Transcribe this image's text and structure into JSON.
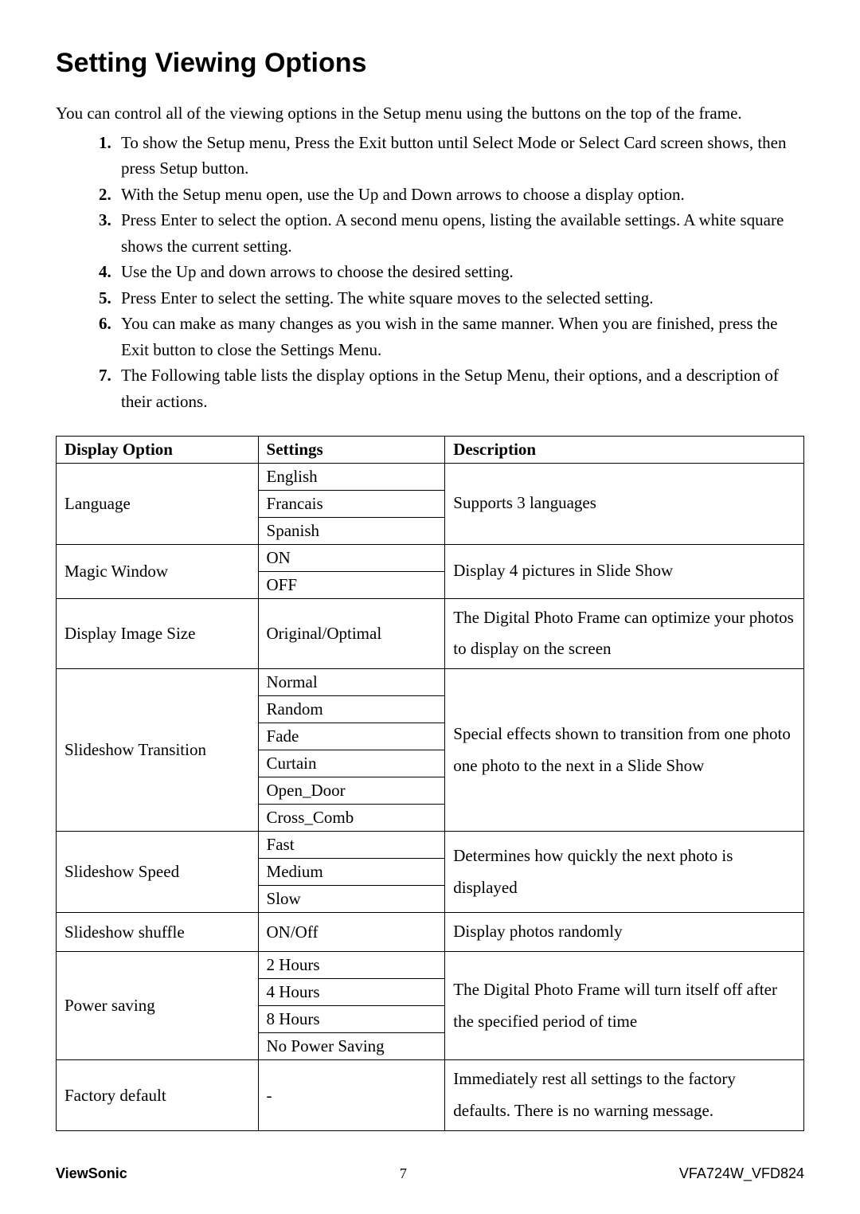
{
  "title": "Setting Viewing Options",
  "intro": "You can control all of the viewing options in the Setup menu using the buttons on the top of the frame.",
  "steps": [
    "To show the Setup menu, Press the Exit button until Select Mode or Select Card screen shows, then press Setup button.",
    "With the Setup menu open, use the Up and Down arrows to choose a display option.",
    "Press Enter to select the option. A second menu opens, listing the available settings. A white square shows the current setting.",
    "Use the Up and down arrows to choose the desired setting.",
    "Press Enter to select the setting. The white square moves to the selected setting.",
    "You can make as many changes as you wish in the same manner. When you are finished, press the Exit button to close the Settings Menu.",
    "The Following table lists the display options in the Setup Menu, their options, and a description of their actions."
  ],
  "table": {
    "headers": {
      "opt": "Display Option",
      "set": "Settings",
      "desc": "Description"
    },
    "rows": [
      {
        "option": "Language",
        "settings": [
          "English",
          "Francais",
          "Spanish"
        ],
        "description": "Supports 3 languages"
      },
      {
        "option": "Magic Window",
        "settings": [
          "ON",
          "OFF"
        ],
        "description": "Display 4 pictures in Slide Show"
      },
      {
        "option": "Display Image Size",
        "settings": [
          "Original/Optimal"
        ],
        "description": "The Digital Photo Frame can optimize your photos to display on the screen"
      },
      {
        "option": "Slideshow Transition",
        "settings": [
          "Normal",
          "Random",
          "Fade",
          "Curtain",
          "Open_Door",
          "Cross_Comb"
        ],
        "description": "Special effects shown to transition from one photo one photo to the next in a Slide Show"
      },
      {
        "option": "Slideshow Speed",
        "settings": [
          "Fast",
          "Medium",
          "Slow"
        ],
        "description": "Determines how quickly the next photo is displayed"
      },
      {
        "option": "Slideshow shuffle",
        "settings": [
          "ON/Off"
        ],
        "description": "Display photos randomly"
      },
      {
        "option": "Power saving",
        "settings": [
          "2 Hours",
          "4 Hours",
          "8 Hours",
          "No Power Saving"
        ],
        "description": "The Digital Photo Frame will turn itself off after the specified period of time"
      },
      {
        "option": "Factory default",
        "settings": [
          "-"
        ],
        "description": "Immediately rest all settings to the factory defaults. There is no warning message."
      }
    ]
  },
  "footer": {
    "brand": "ViewSonic",
    "page": "7",
    "model": "VFA724W_VFD824"
  }
}
